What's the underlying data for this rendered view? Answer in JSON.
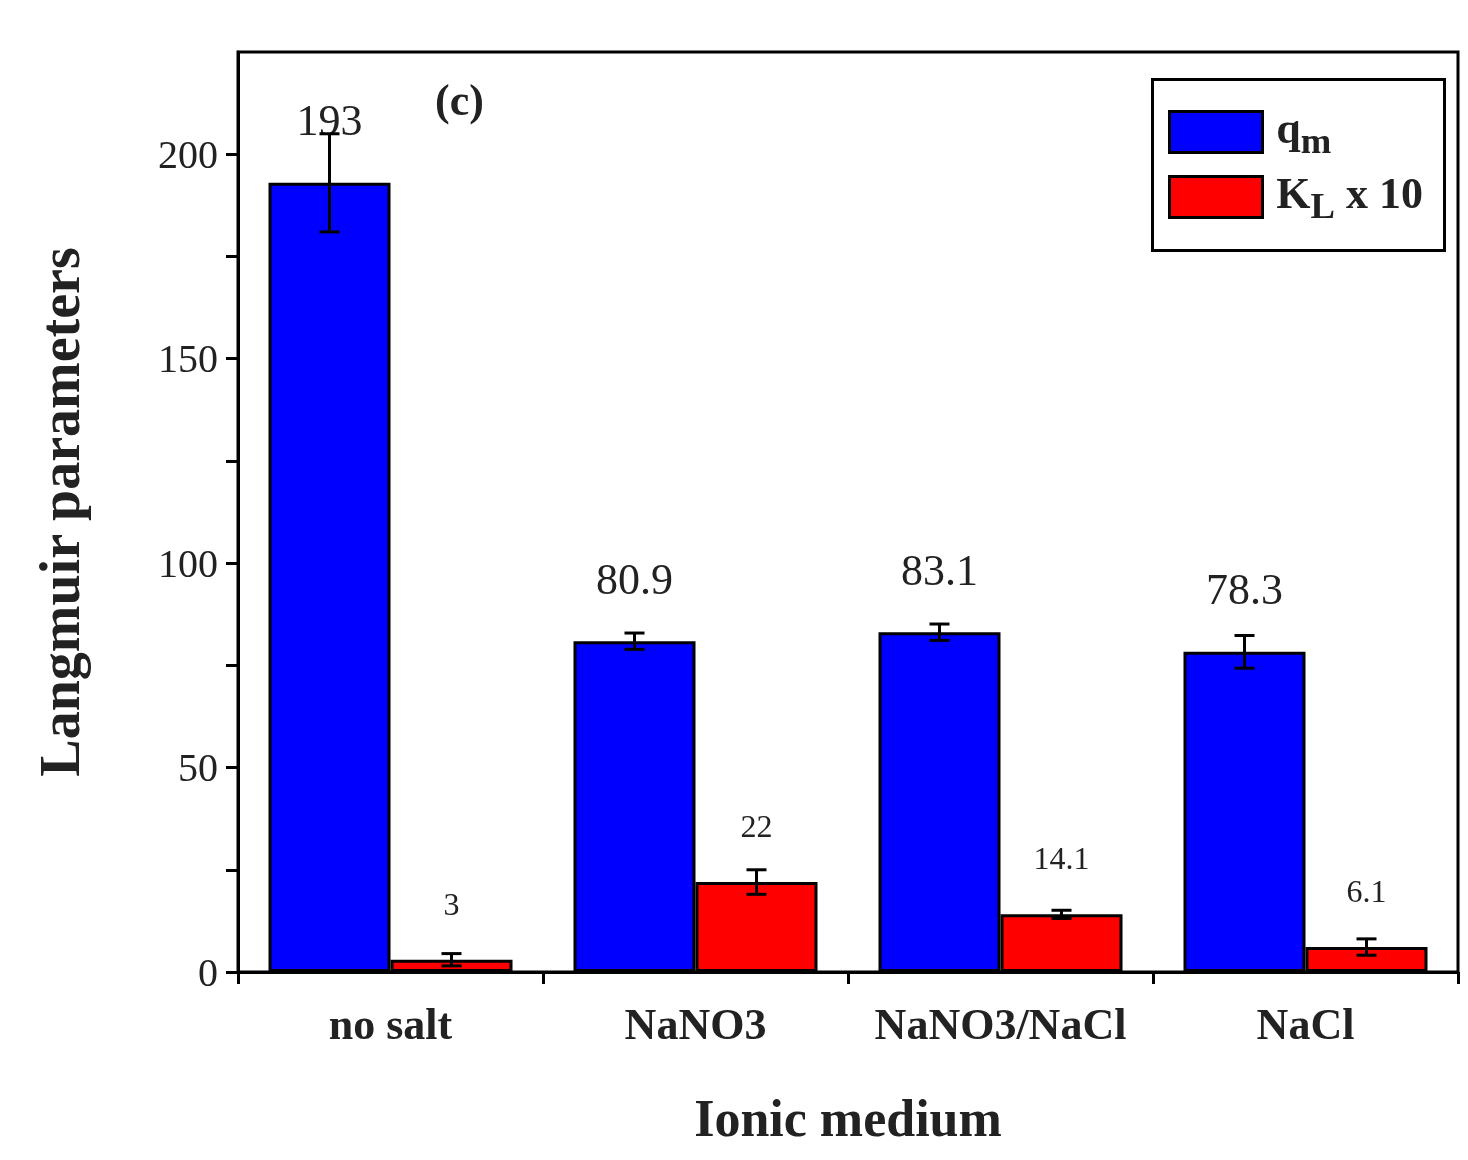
{
  "chart_data": {
    "type": "bar",
    "xlabel": "Ionic medium",
    "ylabel": "Langmuir parameters",
    "categories": [
      "no salt",
      "NaNO3",
      "NaNO3/NaCl",
      "NaCl"
    ],
    "series": [
      {
        "name": "q$_{m}$",
        "color": "#0000ff",
        "values": [
          193,
          80.9,
          83.1,
          78.3
        ],
        "errors": [
          12,
          2,
          2,
          4
        ]
      },
      {
        "name": "K$_{L}$ x 10",
        "color": "#ff0000",
        "values": [
          3,
          22,
          14.1,
          6.1
        ],
        "errors": [
          1.5,
          3,
          1,
          2
        ]
      }
    ],
    "ylim": [
      0,
      225
    ],
    "yticks": [
      0,
      {
        "value": 25,
        "label": null
      },
      50,
      {
        "value": 75,
        "label": null
      },
      100,
      {
        "value": 125,
        "label": null
      },
      150,
      {
        "value": 175,
        "label": null
      },
      200
    ],
    "data_labels": true,
    "legend": "top right",
    "grid": false,
    "annotations": [
      "(c)"
    ]
  }
}
